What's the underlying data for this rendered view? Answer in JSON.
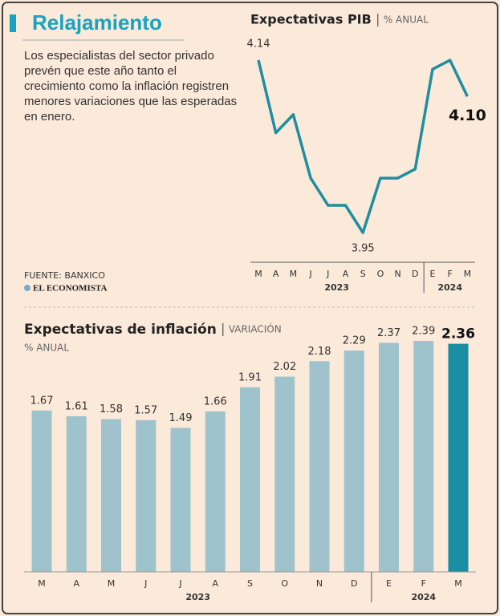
{
  "header": {
    "title": "Relajamiento",
    "text": "Los especialistas del sector privado prevén que este año tanto el crecimiento como la inflación registren menores variaciones que las esperadas en enero.",
    "source": "FUENTE: BANXICO",
    "brand": "EL ECONOMISTA"
  },
  "chart_data": [
    {
      "type": "line",
      "title": "Expectativas PIB",
      "subtitle": "% ANUAL",
      "categories": [
        "M",
        "A",
        "M",
        "J",
        "J",
        "A",
        "S",
        "O",
        "N",
        "D",
        "E",
        "F",
        "M"
      ],
      "x_groups": [
        {
          "label": "2023",
          "size": 10
        },
        {
          "label": "2024",
          "size": 3
        }
      ],
      "values": [
        4.14,
        4.06,
        4.08,
        4.01,
        3.98,
        3.98,
        3.95,
        4.01,
        4.01,
        4.02,
        4.13,
        4.14,
        4.1
      ],
      "value_labels": [
        "4.14",
        null,
        null,
        null,
        null,
        null,
        "3.95",
        null,
        null,
        null,
        null,
        null,
        "4.10"
      ],
      "color": "#1f8ea1"
    },
    {
      "type": "bar",
      "title": "Expectativas de inflación",
      "subtitle": "VARIACIÓN",
      "unit": "% ANUAL",
      "categories": [
        "M",
        "A",
        "M",
        "J",
        "J",
        "A",
        "S",
        "O",
        "N",
        "D",
        "E",
        "F",
        "M"
      ],
      "x_groups": [
        {
          "label": "2023",
          "size": 10
        },
        {
          "label": "2024",
          "size": 3
        }
      ],
      "values": [
        1.67,
        1.61,
        1.58,
        1.57,
        1.49,
        1.66,
        1.91,
        2.02,
        2.18,
        2.29,
        2.37,
        2.39,
        2.36
      ],
      "colors": [
        "#9fc3cc",
        "#9fc3cc",
        "#9fc3cc",
        "#9fc3cc",
        "#9fc3cc",
        "#9fc3cc",
        "#9fc3cc",
        "#9fc3cc",
        "#9fc3cc",
        "#9fc3cc",
        "#9fc3cc",
        "#9fc3cc",
        "#1a8fa3"
      ]
    }
  ]
}
